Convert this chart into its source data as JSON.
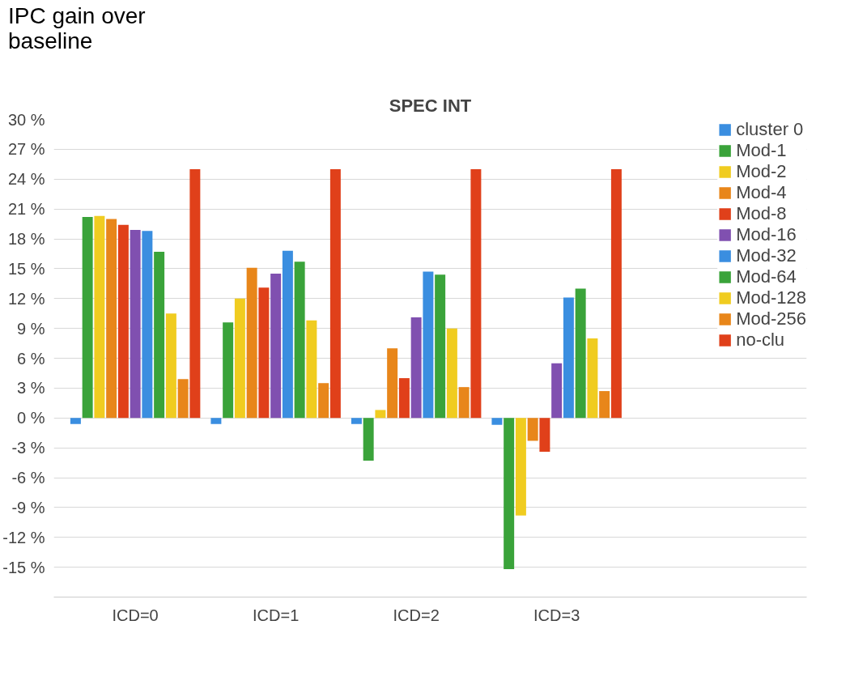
{
  "chart_data": {
    "type": "bar",
    "title": "SPEC INT",
    "ylabel": "IPC gain over baseline",
    "categories": [
      "ICD=0",
      "ICD=1",
      "ICD=2",
      "ICD=3"
    ],
    "series": [
      {
        "name": "cluster 0",
        "color": "#3a8ee0",
        "values": [
          -0.6,
          -0.6,
          -0.6,
          -0.7
        ]
      },
      {
        "name": "Mod-1",
        "color": "#3aa33a",
        "values": [
          20.2,
          9.6,
          -4.3,
          -15.2
        ]
      },
      {
        "name": "Mod-2",
        "color": "#f0cc20",
        "values": [
          20.3,
          12.0,
          0.8,
          -9.8
        ]
      },
      {
        "name": "Mod-4",
        "color": "#e8861a",
        "values": [
          20.0,
          15.1,
          7.0,
          -2.3
        ]
      },
      {
        "name": "Mod-8",
        "color": "#e0401a",
        "values": [
          19.4,
          13.1,
          4.0,
          -3.4
        ]
      },
      {
        "name": "Mod-16",
        "color": "#8050b0",
        "values": [
          18.9,
          14.5,
          10.1,
          5.5
        ]
      },
      {
        "name": "Mod-32",
        "color": "#3a8ee0",
        "values": [
          18.8,
          16.8,
          14.7,
          12.1
        ]
      },
      {
        "name": "Mod-64",
        "color": "#3aa33a",
        "values": [
          16.7,
          15.7,
          14.4,
          13.0
        ]
      },
      {
        "name": "Mod-128",
        "color": "#f0cc20",
        "values": [
          10.5,
          9.8,
          9.0,
          8.0
        ]
      },
      {
        "name": "Mod-256",
        "color": "#e8861a",
        "values": [
          3.9,
          3.5,
          3.1,
          2.7
        ]
      },
      {
        "name": "no-clu",
        "color": "#e0401a",
        "values": [
          25,
          25,
          25,
          25
        ]
      }
    ],
    "ylim": [
      -18,
      30
    ],
    "yticks": [
      {
        "value": -15,
        "label": "-15 %"
      },
      {
        "value": -12,
        "label": "-12 %"
      },
      {
        "value": -9,
        "label": "-9 %"
      },
      {
        "value": -6,
        "label": "-6 %"
      },
      {
        "value": -3,
        "label": "-3 %"
      },
      {
        "value": 0,
        "label": "0 %"
      },
      {
        "value": 3,
        "label": "3 %"
      },
      {
        "value": 6,
        "label": "6 %"
      },
      {
        "value": 9,
        "label": "9 %"
      },
      {
        "value": 12,
        "label": "12 %"
      },
      {
        "value": 15,
        "label": "15 %"
      },
      {
        "value": 18,
        "label": "18 %"
      },
      {
        "value": 21,
        "label": "21 %"
      },
      {
        "value": 24,
        "label": "24 %"
      },
      {
        "value": 27,
        "label": "27 %"
      },
      {
        "value": 30,
        "label": "30 %"
      }
    ],
    "grid": "y",
    "legend": "right"
  }
}
